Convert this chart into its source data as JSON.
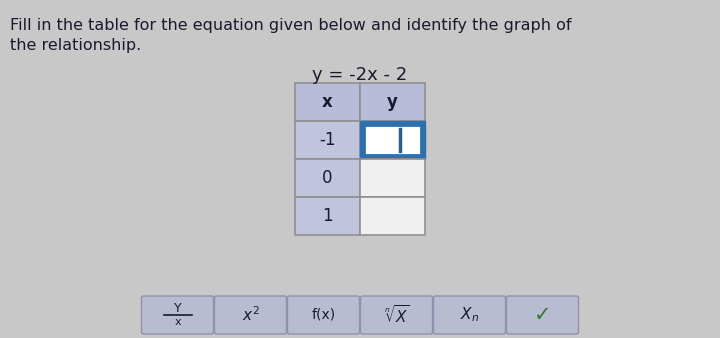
{
  "title_line1": "Fill in the table for the equation given below and identify the graph of",
  "title_line2": "the relationship.",
  "equation": "y = -2x - 2",
  "bg_color": "#c8c8c8",
  "table_header_bg": "#b8bcd8",
  "table_left_bg": "#c0c4dc",
  "table_right_bg": "#f0f0f0",
  "table_x_values": [
    "-1",
    "0",
    "1"
  ],
  "table_x_header": "x",
  "table_y_header": "y",
  "active_cell_bg": "#2e6fad",
  "active_cell_inner": "#ffffff",
  "active_cell_text": "",
  "cursor_color": "#2a5f8a",
  "toolbar_bg": "#b8bcd0",
  "toolbar_border": "#9090b0",
  "checkmark_color": "#2e7d32",
  "text_color": "#1a1a2e",
  "cell_border": "#909090",
  "title_fontsize": 11.5,
  "eq_fontsize": 13,
  "cell_fontsize": 12
}
